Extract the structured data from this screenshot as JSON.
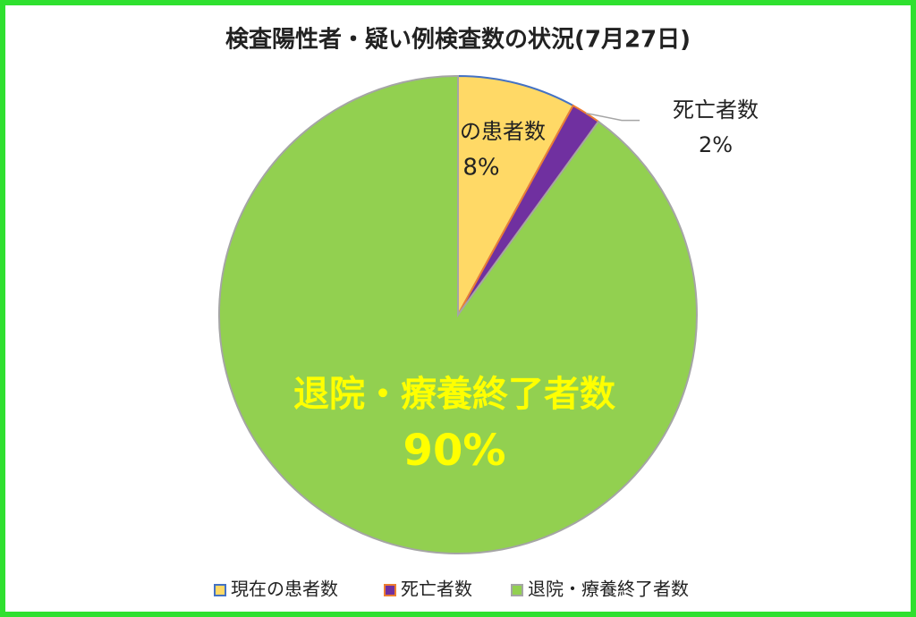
{
  "chart_data": {
    "type": "pie",
    "title": "検査陽性者・疑い例検査数の状況(7月27日)",
    "categories": [
      "現在の患者数",
      "死亡者数",
      "退院・療養終了者数"
    ],
    "values": [
      8,
      2,
      90
    ],
    "value_labels": [
      "8%",
      "2%",
      "90%"
    ],
    "colors": [
      "#ffd966",
      "#7030a0",
      "#92d050"
    ],
    "edge_colors": [
      "#4472c4",
      "#ed7d31",
      "#a5a5a5"
    ],
    "legend": "bottom"
  }
}
